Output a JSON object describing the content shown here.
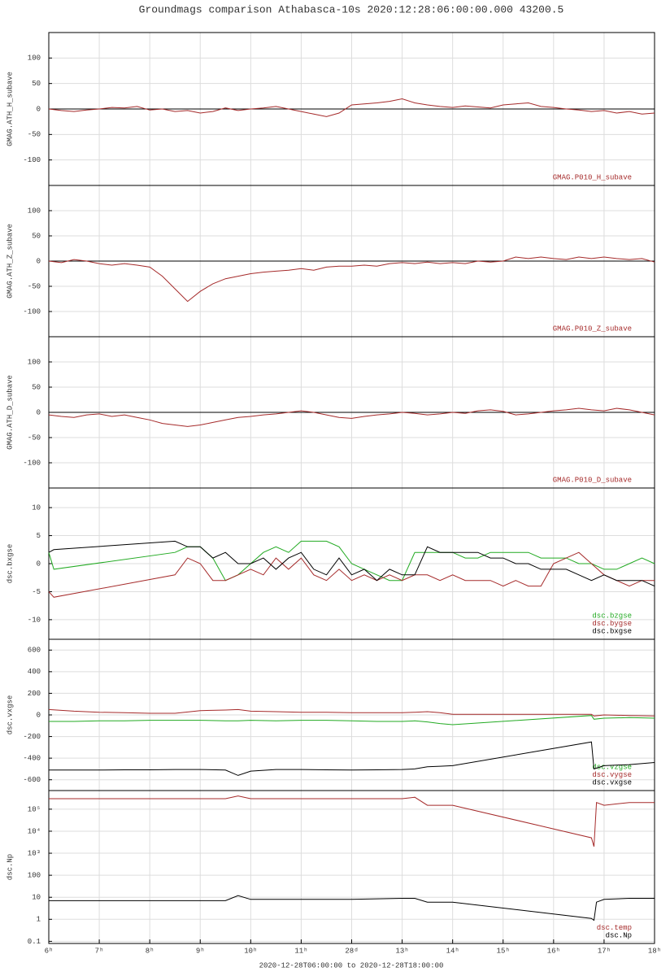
{
  "chart_data": [
    {
      "type": "line",
      "title": "Groundmags comparison Athabasca-10s 2020:12:28:06:00:00.000 43200.5",
      "ylabel": "GMAG.ATH_H_subave",
      "xlim": [
        6,
        18
      ],
      "ylim": [
        -150,
        150
      ],
      "yticks": [
        -100,
        -50,
        0,
        50,
        100
      ],
      "hline": 0,
      "grid": true,
      "x": [
        6,
        6.25,
        6.5,
        6.75,
        7,
        7.25,
        7.5,
        7.75,
        8,
        8.25,
        8.5,
        8.75,
        9,
        9.25,
        9.5,
        9.75,
        10,
        10.25,
        10.5,
        10.75,
        11,
        11.25,
        11.5,
        11.75,
        12,
        12.25,
        12.5,
        12.75,
        13,
        13.25,
        13.5,
        13.75,
        14,
        14.25,
        14.5,
        14.75,
        15,
        15.25,
        15.5,
        15.75,
        16,
        16.25,
        16.5,
        16.75,
        17,
        17.25,
        17.5,
        17.75,
        18
      ],
      "series": [
        {
          "name": "GMAG.P010_H_subave",
          "color": "#a52a2a",
          "values": [
            0,
            -3,
            -5,
            -2,
            0,
            3,
            2,
            5,
            -2,
            0,
            -5,
            -3,
            -8,
            -5,
            2,
            -3,
            0,
            2,
            5,
            0,
            -5,
            -10,
            -15,
            -8,
            8,
            10,
            12,
            15,
            20,
            12,
            8,
            5,
            3,
            6,
            4,
            2,
            8,
            10,
            12,
            5,
            3,
            0,
            -2,
            -5,
            -3,
            -8,
            -5,
            -10,
            -8
          ]
        }
      ]
    },
    {
      "type": "line",
      "ylabel": "GMAG.ATH_Z_subave",
      "xlim": [
        6,
        18
      ],
      "ylim": [
        -150,
        150
      ],
      "yticks": [
        -100,
        -50,
        0,
        50,
        100
      ],
      "hline": 0,
      "grid": true,
      "x": [
        6,
        6.25,
        6.5,
        6.75,
        7,
        7.25,
        7.5,
        7.75,
        8,
        8.25,
        8.5,
        8.75,
        9,
        9.25,
        9.5,
        9.75,
        10,
        10.25,
        10.5,
        10.75,
        11,
        11.25,
        11.5,
        11.75,
        12,
        12.25,
        12.5,
        12.75,
        13,
        13.25,
        13.5,
        13.75,
        14,
        14.25,
        14.5,
        14.75,
        15,
        15.25,
        15.5,
        15.75,
        16,
        16.25,
        16.5,
        16.75,
        17,
        17.25,
        17.5,
        17.75,
        18
      ],
      "series": [
        {
          "name": "GMAG.P010_Z_subave",
          "color": "#a52a2a",
          "values": [
            0,
            -3,
            3,
            0,
            -5,
            -8,
            -5,
            -8,
            -12,
            -30,
            -55,
            -80,
            -60,
            -45,
            -35,
            -30,
            -25,
            -22,
            -20,
            -18,
            -15,
            -18,
            -12,
            -10,
            -10,
            -8,
            -10,
            -5,
            -3,
            -5,
            -2,
            -5,
            -3,
            -5,
            0,
            -2,
            0,
            8,
            5,
            8,
            5,
            3,
            8,
            5,
            8,
            5,
            3,
            5,
            -2
          ]
        }
      ]
    },
    {
      "type": "line",
      "ylabel": "GMAG.ATH_D_subave",
      "xlim": [
        6,
        18
      ],
      "ylim": [
        -150,
        150
      ],
      "yticks": [
        -100,
        -50,
        0,
        50,
        100
      ],
      "hline": 0,
      "grid": true,
      "x": [
        6,
        6.25,
        6.5,
        6.75,
        7,
        7.25,
        7.5,
        7.75,
        8,
        8.25,
        8.5,
        8.75,
        9,
        9.25,
        9.5,
        9.75,
        10,
        10.25,
        10.5,
        10.75,
        11,
        11.25,
        11.5,
        11.75,
        12,
        12.25,
        12.5,
        12.75,
        13,
        13.25,
        13.5,
        13.75,
        14,
        14.25,
        14.5,
        14.75,
        15,
        15.25,
        15.5,
        15.75,
        16,
        16.25,
        16.5,
        16.75,
        17,
        17.25,
        17.5,
        17.75,
        18
      ],
      "series": [
        {
          "name": "GMAG.P010_D_subave",
          "color": "#a52a2a",
          "values": [
            -5,
            -8,
            -10,
            -5,
            -3,
            -8,
            -5,
            -10,
            -15,
            -22,
            -25,
            -28,
            -25,
            -20,
            -15,
            -10,
            -8,
            -5,
            -3,
            0,
            3,
            0,
            -5,
            -10,
            -12,
            -8,
            -5,
            -3,
            0,
            -2,
            -5,
            -3,
            0,
            -2,
            3,
            5,
            2,
            -5,
            -3,
            0,
            3,
            5,
            8,
            5,
            3,
            8,
            5,
            0,
            -5
          ]
        }
      ]
    },
    {
      "type": "line",
      "ylabel": "dsc.bxgse",
      "xlim": [
        6,
        18
      ],
      "ylim": [
        -13.5,
        13.5
      ],
      "yticks": [
        -10,
        -5,
        0,
        5,
        10
      ],
      "grid": true,
      "x": [
        6,
        6.1,
        8.5,
        8.75,
        9,
        9.25,
        9.5,
        9.75,
        10,
        10.25,
        10.5,
        10.75,
        11,
        11.25,
        11.5,
        11.75,
        12,
        12.25,
        12.5,
        12.75,
        13,
        13.25,
        13.5,
        13.75,
        14,
        14.25,
        14.5,
        14.75,
        15,
        15.25,
        15.5,
        15.75,
        16,
        16.25,
        16.5,
        16.75,
        17,
        17.25,
        17.5,
        17.75,
        18
      ],
      "series": [
        {
          "name": "dsc.bzgse",
          "color": "#22aa22",
          "values": [
            2,
            -1,
            2,
            3,
            3,
            1,
            -3,
            -2,
            0,
            2,
            3,
            2,
            4,
            4,
            4,
            3,
            0,
            -1,
            -2,
            -3,
            -3,
            2,
            2,
            2,
            2,
            1,
            1,
            2,
            2,
            2,
            2,
            1,
            1,
            1,
            0,
            0,
            -1,
            -1,
            0,
            1,
            0
          ]
        },
        {
          "name": "dsc.bygse",
          "color": "#a52a2a",
          "values": [
            -5,
            -6,
            -2,
            1,
            0,
            -3,
            -3,
            -2,
            -1,
            -2,
            1,
            -1,
            1,
            -2,
            -3,
            -1,
            -3,
            -2,
            -3,
            -2,
            -3,
            -2,
            -2,
            -3,
            -2,
            -3,
            -3,
            -3,
            -4,
            -3,
            -4,
            -4,
            0,
            1,
            2,
            0,
            -2,
            -3,
            -4,
            -3,
            -3
          ]
        },
        {
          "name": "dsc.bxgse",
          "color": "#000000",
          "values": [
            2,
            2.5,
            4,
            3,
            3,
            1,
            2,
            0,
            0,
            1,
            -1,
            1,
            2,
            -1,
            -2,
            1,
            -2,
            -1,
            -3,
            -1,
            -2,
            -2,
            3,
            2,
            2,
            2,
            2,
            1,
            1,
            0,
            0,
            -1,
            -1,
            -1,
            -2,
            -3,
            -2,
            -3,
            -3,
            -3,
            -4
          ]
        }
      ]
    },
    {
      "type": "line",
      "ylabel": "dsc.vxgse",
      "xlim": [
        6,
        18
      ],
      "ylim": [
        -700,
        700
      ],
      "yticks": [
        -600,
        -400,
        -200,
        0,
        200,
        400,
        600
      ],
      "grid": true,
      "x": [
        6,
        6.5,
        7,
        7.5,
        8,
        8.5,
        9,
        9.5,
        9.75,
        10,
        10.5,
        11,
        11.5,
        12,
        12.5,
        13,
        13.25,
        13.5,
        13.75,
        14,
        16.75,
        16.8,
        17,
        17.5,
        18
      ],
      "series": [
        {
          "name": "dsc.vzgse",
          "color": "#22aa22",
          "values": [
            -60,
            -60,
            -55,
            -55,
            -50,
            -50,
            -50,
            -55,
            -55,
            -50,
            -55,
            -50,
            -50,
            -55,
            -60,
            -60,
            -55,
            -65,
            -80,
            -90,
            -5,
            -40,
            -30,
            -25,
            -30
          ]
        },
        {
          "name": "dsc.vygse",
          "color": "#a52a2a",
          "values": [
            50,
            35,
            25,
            20,
            15,
            15,
            40,
            45,
            50,
            35,
            30,
            25,
            25,
            20,
            20,
            20,
            25,
            30,
            20,
            5,
            5,
            -10,
            0,
            -5,
            -10
          ]
        },
        {
          "name": "dsc.vxgse",
          "color": "#000000",
          "values": [
            -510,
            -510,
            -510,
            -508,
            -508,
            -505,
            -505,
            -510,
            -560,
            -520,
            -505,
            -505,
            -508,
            -510,
            -508,
            -505,
            -500,
            -480,
            -475,
            -470,
            -250,
            -500,
            -470,
            -460,
            -440
          ]
        }
      ]
    },
    {
      "type": "line",
      "ylabel": "dsc.Np",
      "log": true,
      "xlim": [
        6,
        18
      ],
      "ylim": [
        0.08,
        700000
      ],
      "grid": true,
      "yticks": [
        0.1,
        1,
        10,
        100,
        {
          "value": 1000,
          "label": "10³"
        },
        {
          "value": 10000,
          "label": "10⁴"
        },
        {
          "value": 100000,
          "label": "10⁵"
        }
      ],
      "xticks": [
        {
          "value": 6,
          "label": "6ʰ"
        },
        {
          "value": 7,
          "label": "7ʰ"
        },
        {
          "value": 8,
          "label": "8ʰ"
        },
        {
          "value": 9,
          "label": "9ʰ"
        },
        {
          "value": 10,
          "label": "10ʰ"
        },
        {
          "value": 11,
          "label": "11ʰ"
        },
        {
          "value": 12,
          "label": "28ᵈ"
        },
        {
          "value": 13,
          "label": "13ʰ"
        },
        {
          "value": 14,
          "label": "14ʰ"
        },
        {
          "value": 15,
          "label": "15ʰ"
        },
        {
          "value": 16,
          "label": "16ʰ"
        },
        {
          "value": 17,
          "label": "17ʰ"
        },
        {
          "value": 18,
          "label": "18ʰ"
        }
      ],
      "xlabel": "2020-12-28T06:00:00 to 2020-12-28T18:00:00",
      "x": [
        6,
        6.5,
        8,
        9.5,
        9.75,
        10,
        11,
        12,
        13,
        13.25,
        13.5,
        14,
        16.75,
        16.8,
        16.85,
        17,
        17.5,
        18
      ],
      "series": [
        {
          "name": "dsc.temp",
          "color": "#a52a2a",
          "values": [
            300000,
            300000,
            300000,
            300000,
            400000,
            300000,
            300000,
            300000,
            300000,
            350000,
            150000,
            150000,
            5000,
            2000,
            200000,
            150000,
            200000,
            200000
          ]
        },
        {
          "name": "dsc.Np",
          "color": "#000000",
          "values": [
            7,
            7,
            7,
            7,
            12,
            8,
            8,
            8,
            9,
            9,
            6,
            6,
            1.1,
            0.9,
            6,
            8,
            9,
            9
          ]
        }
      ]
    }
  ]
}
